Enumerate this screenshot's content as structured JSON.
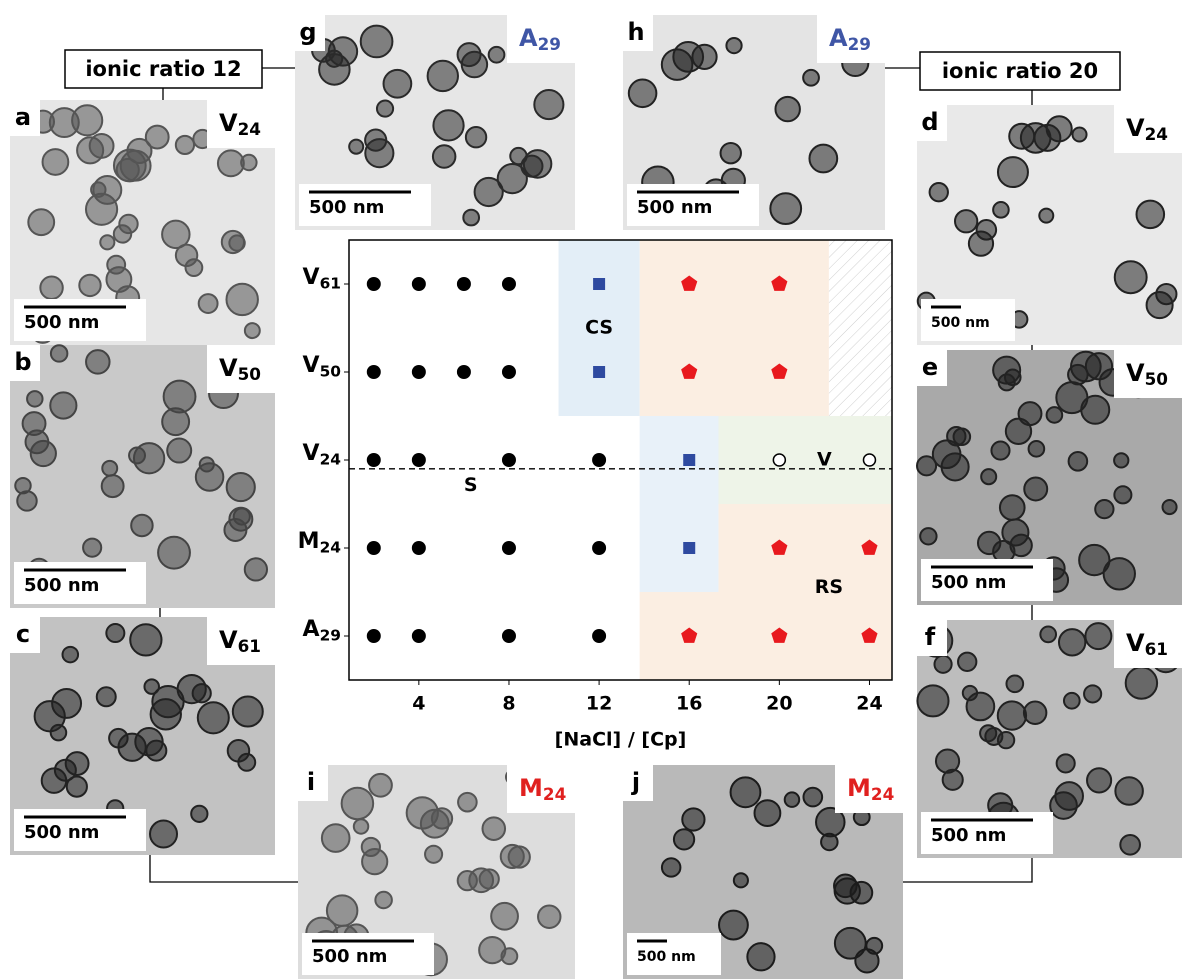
{
  "groups": [
    {
      "label": "ionic ratio 12"
    },
    {
      "label": "ionic ratio 20"
    }
  ],
  "panels": [
    {
      "letter": "a",
      "sample": "V24",
      "sample_color": "#000000",
      "scale_bar": "500 nm"
    },
    {
      "letter": "b",
      "sample": "V50",
      "sample_color": "#000000",
      "scale_bar": "500 nm"
    },
    {
      "letter": "c",
      "sample": "V61",
      "sample_color": "#000000",
      "scale_bar": "500 nm"
    },
    {
      "letter": "d",
      "sample": "V24",
      "sample_color": "#000000",
      "scale_bar": "500 nm"
    },
    {
      "letter": "e",
      "sample": "V50",
      "sample_color": "#000000",
      "scale_bar": "500 nm"
    },
    {
      "letter": "f",
      "sample": "V61",
      "sample_color": "#000000",
      "scale_bar": "500 nm"
    },
    {
      "letter": "g",
      "sample": "A29",
      "sample_color": "#3f56a6",
      "scale_bar": "500 nm"
    },
    {
      "letter": "h",
      "sample": "A29",
      "sample_color": "#3f56a6",
      "scale_bar": "500 nm"
    },
    {
      "letter": "i",
      "sample": "M24",
      "sample_color": "#e0201f",
      "scale_bar": "500 nm"
    },
    {
      "letter": "j",
      "sample": "M24",
      "sample_color": "#e0201f",
      "scale_bar": "500 nm"
    }
  ],
  "chart_data": {
    "type": "scatter",
    "xlabel": "[NaCl] / [Cp]",
    "categories": [
      "V61",
      "V50",
      "V24",
      "M24",
      "A29"
    ],
    "xlim": [
      0.9,
      25
    ],
    "xticks": [
      4,
      8,
      12,
      16,
      20,
      24
    ],
    "series": [
      {
        "name": "S",
        "marker": "circle",
        "color": "#000000",
        "x": [
          2,
          4,
          6,
          8,
          2,
          4,
          6,
          8,
          2,
          4,
          8,
          12,
          2,
          4,
          8,
          12,
          2,
          4,
          8,
          12
        ],
        "y": [
          "V61",
          "V61",
          "V61",
          "V61",
          "V50",
          "V50",
          "V50",
          "V50",
          "V24",
          "V24",
          "V24",
          "V24",
          "M24",
          "M24",
          "M24",
          "M24",
          "A29",
          "A29",
          "A29",
          "A29"
        ]
      },
      {
        "name": "CS",
        "marker": "square",
        "color": "#2e4aa0",
        "x": [
          12,
          12,
          16,
          16
        ],
        "y": [
          "V61",
          "V50",
          "V24",
          "M24"
        ]
      },
      {
        "name": "RS",
        "marker": "pentagon",
        "color": "#e8191e",
        "x": [
          16,
          20,
          16,
          20,
          20,
          24,
          16,
          20,
          24
        ],
        "y": [
          "V61",
          "V61",
          "V50",
          "V50",
          "M24",
          "M24",
          "A29",
          "A29",
          "A29"
        ]
      },
      {
        "name": "V",
        "marker": "open-circle",
        "color": "#000000",
        "x": [
          20,
          24
        ],
        "y": [
          "V24",
          "V24"
        ]
      }
    ],
    "regions": [
      {
        "x": [
          10.2,
          13.8
        ],
        "rows": [
          "V61",
          "V50"
        ],
        "color": "#e3eef7"
      },
      {
        "x": [
          13.8,
          17.3
        ],
        "rows": [
          "V24",
          "M24"
        ],
        "color": "#e8f1f9"
      },
      {
        "x": [
          13.8,
          22.2
        ],
        "rows": [
          "V61",
          "V50"
        ],
        "color": "#fbeee2"
      },
      {
        "x": [
          17.3,
          25
        ],
        "rows": [
          "M24",
          "M24"
        ],
        "color": "#fbeee2"
      },
      {
        "x": [
          13.8,
          25
        ],
        "rows": [
          "A29",
          "A29"
        ],
        "color": "#fbeee2"
      },
      {
        "x": [
          17.3,
          25
        ],
        "rows": [
          "V24",
          "V24"
        ],
        "color": "#eef4e8"
      },
      {
        "x": [
          22.2,
          25
        ],
        "rows": [
          "V61",
          "V50"
        ],
        "color": "hatch"
      }
    ]
  }
}
